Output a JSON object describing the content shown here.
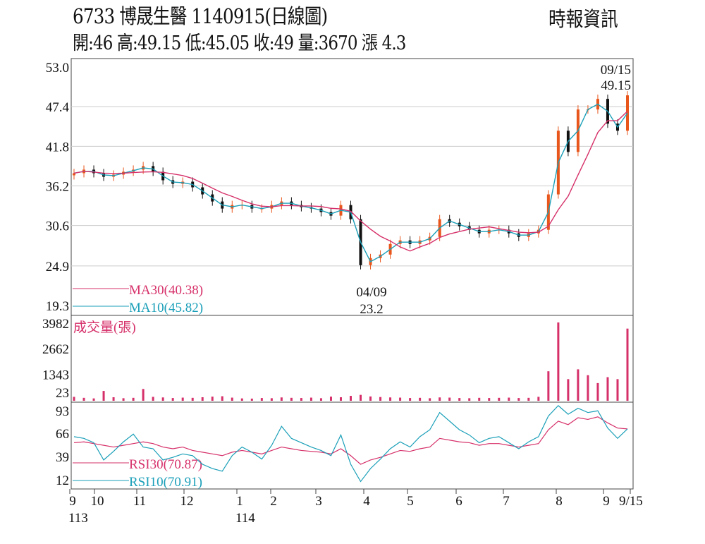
{
  "header": {
    "title": "6733  博晟生醫 1140915(日線圖)",
    "ohlc_line": "開:46 高:49.15 低:45.05 收:49 量:3670 漲 4.3",
    "source": "時報資訊"
  },
  "chart_data": [
    {
      "type": "candlestick",
      "panel": "price",
      "y_ticks": [
        "53.0",
        "47.4",
        "41.8",
        "36.2",
        "30.6",
        "24.9",
        "19.3"
      ],
      "ylim": [
        19.3,
        53.0
      ],
      "closes": [
        38,
        38.5,
        38,
        37.5,
        37.8,
        38.2,
        38.5,
        39,
        38.2,
        37,
        36.5,
        36.8,
        36,
        35,
        34,
        33,
        33.5,
        33.5,
        33,
        33,
        33.5,
        34,
        33.5,
        33.2,
        33,
        32.5,
        32,
        33.5,
        31.5,
        25,
        26,
        26.5,
        28,
        28.5,
        28,
        28.5,
        29,
        31.5,
        31,
        30.5,
        30,
        29.5,
        30,
        30,
        29.5,
        29,
        29.5,
        30,
        35,
        44,
        41,
        47,
        47,
        48.5,
        45,
        44,
        49
      ],
      "annotations": [
        {
          "label_date": "09/15",
          "label_value": "49.15",
          "type": "high"
        },
        {
          "label_date": "04/09",
          "label_value": "23.2",
          "type": "low"
        }
      ],
      "legend": [
        {
          "name": "MA30(40.38)",
          "color": "#d6306a"
        },
        {
          "name": "MA10(45.82)",
          "color": "#1a9fb8"
        }
      ]
    },
    {
      "type": "bar",
      "panel": "volume",
      "title": "成交量(張)",
      "y_ticks": [
        "3982",
        "2662",
        "1343",
        "23"
      ],
      "ylim": [
        0,
        3982
      ],
      "values": [
        200,
        150,
        120,
        500,
        180,
        130,
        150,
        600,
        200,
        170,
        140,
        160,
        150,
        180,
        210,
        230,
        160,
        120,
        110,
        140,
        130,
        170,
        150,
        140,
        160,
        130,
        210,
        180,
        250,
        300,
        220,
        190,
        170,
        160,
        140,
        150,
        130,
        170,
        160,
        140,
        130,
        150,
        140,
        150,
        160,
        140,
        150,
        200,
        1500,
        3982,
        1100,
        1600,
        1300,
        900,
        1200,
        1100,
        3670
      ],
      "color": "#d6306a"
    },
    {
      "type": "line",
      "panel": "rsi",
      "y_ticks": [
        "93",
        "66",
        "39",
        "12"
      ],
      "ylim": [
        0,
        100
      ],
      "series": [
        {
          "name": "RSI30(70.87)",
          "color": "#d6306a",
          "values": [
            55,
            56,
            54,
            52,
            50,
            52,
            54,
            56,
            54,
            50,
            48,
            50,
            46,
            44,
            42,
            40,
            44,
            46,
            44,
            42,
            46,
            50,
            48,
            46,
            45,
            44,
            42,
            48,
            40,
            30,
            35,
            38,
            42,
            46,
            45,
            48,
            50,
            60,
            58,
            56,
            55,
            52,
            54,
            54,
            52,
            50,
            52,
            54,
            70,
            80,
            76,
            84,
            82,
            85,
            78,
            72,
            71
          ]
        },
        {
          "name": "RSI10(70.91)",
          "color": "#1a9fb8",
          "values": [
            62,
            60,
            55,
            35,
            45,
            56,
            65,
            50,
            48,
            35,
            38,
            42,
            40,
            30,
            25,
            22,
            40,
            50,
            44,
            36,
            52,
            74,
            60,
            55,
            50,
            46,
            40,
            64,
            30,
            10,
            25,
            36,
            48,
            56,
            50,
            62,
            70,
            90,
            80,
            70,
            64,
            55,
            60,
            62,
            55,
            48,
            56,
            62,
            86,
            98,
            88,
            95,
            90,
            92,
            72,
            60,
            71
          ]
        }
      ]
    }
  ],
  "x_axis": {
    "labels": [
      "9",
      "10",
      "11",
      "12",
      "1",
      "2",
      "3",
      "4",
      "5",
      "6",
      "7",
      "8",
      "9",
      "9/15"
    ],
    "year_labels": [
      "113",
      "114"
    ]
  }
}
